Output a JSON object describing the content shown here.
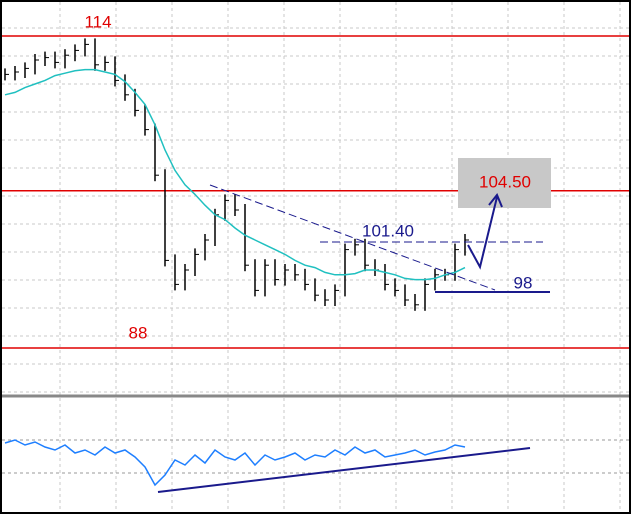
{
  "chart_data": {
    "type": "candlestick-line",
    "ylim": [
      84,
      117
    ],
    "levels": [
      114,
      101.1,
      88
    ],
    "level_color": "#e00000",
    "series": [
      {
        "name": "price",
        "color": "#000000",
        "values": [
          110.8,
          111,
          111.3,
          112,
          112.2,
          111.8,
          112.4,
          112.8,
          113.3,
          111.6,
          111.8,
          110.3,
          109.1,
          107.8,
          106.2,
          102.4,
          95.3,
          93.3,
          94.5,
          95.8,
          97,
          99.1,
          100.3,
          99.5,
          94.9,
          92.8,
          94.9,
          93.7,
          94.5,
          94.1,
          93.3,
          92.4,
          92,
          92.8,
          96.2,
          96.6,
          94.9,
          94.5,
          93.3,
          92.8,
          92,
          91.6,
          93.3,
          94.1,
          94.1,
          96.2,
          97
        ]
      },
      {
        "name": "moving-average",
        "color": "#20c0c0",
        "values": [
          109.1,
          109.3,
          109.7,
          110,
          110.3,
          110.7,
          110.9,
          111.1,
          111.2,
          111.2,
          111,
          110.8,
          110.2,
          109.3,
          108.3,
          106.6,
          104.5,
          102.8,
          101.6,
          100.8,
          99.9,
          99.1,
          98.7,
          98,
          97.4,
          97,
          96.6,
          96.2,
          95.8,
          95.3,
          94.9,
          94.7,
          94.3,
          94.1,
          94.1,
          94.2,
          94.5,
          94.5,
          94.3,
          94.1,
          93.8,
          93.7,
          93.7,
          93.8,
          94.1,
          94.3,
          94.7
        ]
      },
      {
        "name": "oscillator",
        "axis": "y2",
        "color": "#1e7fff",
        "values": [
          62,
          65,
          60,
          63,
          58,
          55,
          60,
          52,
          55,
          50,
          58,
          52,
          55,
          48,
          38,
          20,
          30,
          45,
          40,
          50,
          42,
          55,
          48,
          45,
          52,
          40,
          50,
          45,
          48,
          52,
          45,
          50,
          48,
          55,
          50,
          58,
          52,
          55,
          48,
          50,
          52,
          55,
          50,
          53,
          55,
          60,
          58
        ]
      }
    ],
    "y2lim": [
      0,
      100
    ],
    "annotations": [
      "114",
      "88",
      "101.40",
      "104.50",
      "98"
    ]
  }
}
